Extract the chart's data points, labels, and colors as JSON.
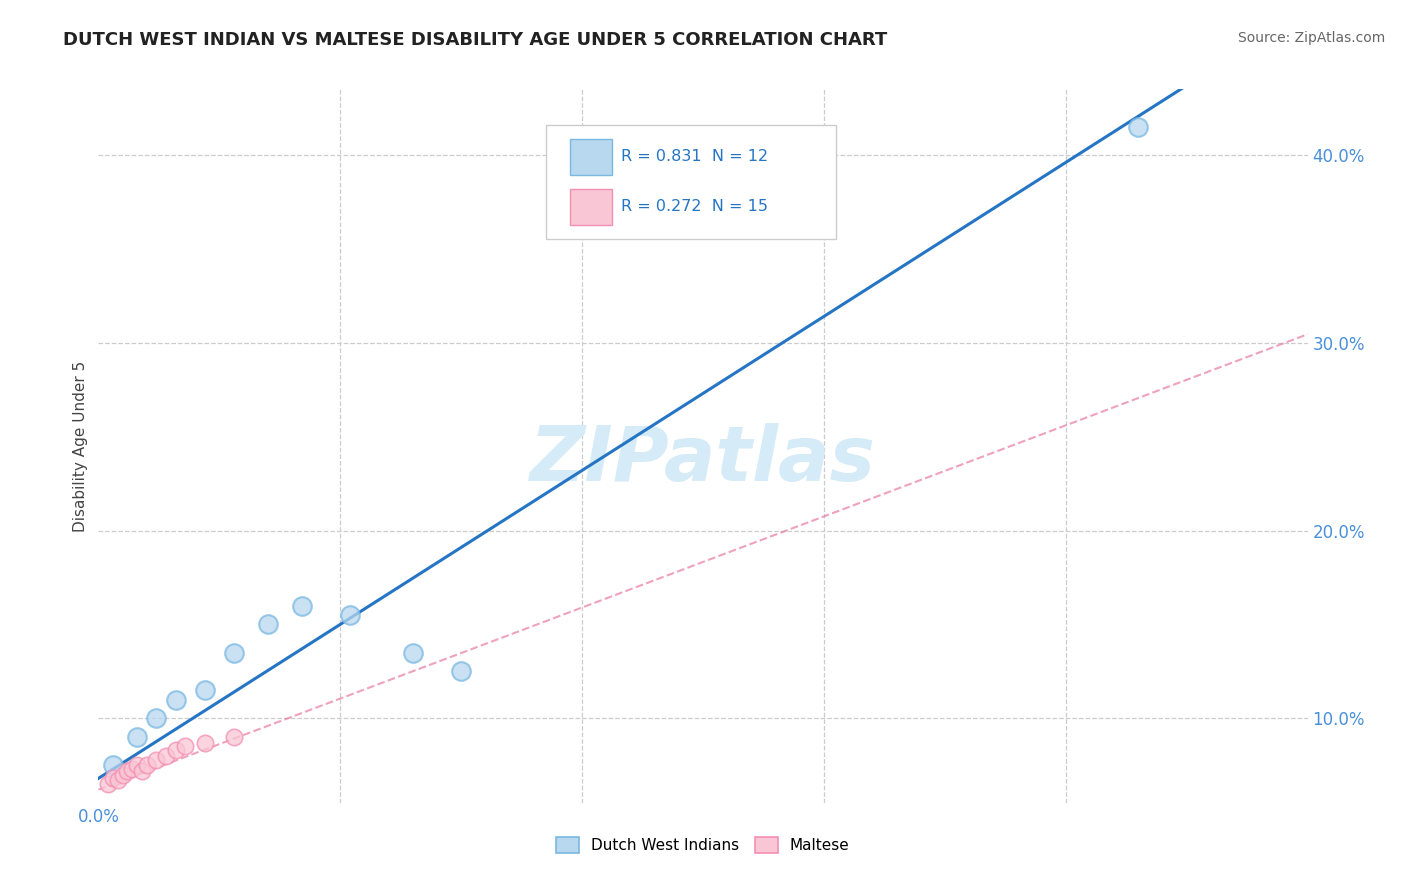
{
  "title": "DUTCH WEST INDIAN VS MALTESE DISABILITY AGE UNDER 5 CORRELATION CHART",
  "source": "Source: ZipAtlas.com",
  "ylabel": "Disability Age Under 5",
  "xlim": [
    0.0,
    0.25
  ],
  "ylim": [
    0.055,
    0.435
  ],
  "xticks": [
    0.0,
    0.05,
    0.1,
    0.15,
    0.2,
    0.25
  ],
  "xticklabels_show": {
    "0.0": "0.0%"
  },
  "yticks": [
    0.1,
    0.2,
    0.3,
    0.4
  ],
  "yticklabels": [
    "10.0%",
    "20.0%",
    "30.0%",
    "40.0%"
  ],
  "grid_yticks": [
    0.1,
    0.2,
    0.3,
    0.4
  ],
  "grid_xticks": [
    0.05,
    0.1,
    0.15,
    0.2
  ],
  "blue_color": "#7ab8e0",
  "blue_fill": "#b8d8f0",
  "pink_color": "#f48fb1",
  "pink_fill": "#f9c6d5",
  "line_blue": "#2575c4",
  "line_pink_dash": "#e87ba0",
  "watermark": "ZIPatlas",
  "legend_R1": "R = 0.831",
  "legend_N1": "N = 12",
  "legend_R2": "R = 0.272",
  "legend_N2": "N = 15",
  "legend_label1": "Dutch West Indians",
  "legend_label2": "Maltese",
  "blue_x": [
    0.003,
    0.008,
    0.012,
    0.016,
    0.022,
    0.028,
    0.035,
    0.042,
    0.052,
    0.065,
    0.075,
    0.215
  ],
  "blue_y": [
    0.075,
    0.09,
    0.1,
    0.11,
    0.115,
    0.135,
    0.15,
    0.16,
    0.155,
    0.135,
    0.125,
    0.415
  ],
  "pink_x": [
    0.002,
    0.003,
    0.004,
    0.005,
    0.006,
    0.007,
    0.008,
    0.009,
    0.01,
    0.012,
    0.014,
    0.016,
    0.018,
    0.022,
    0.028
  ],
  "pink_y": [
    0.065,
    0.068,
    0.067,
    0.07,
    0.072,
    0.073,
    0.075,
    0.072,
    0.075,
    0.078,
    0.08,
    0.083,
    0.085,
    0.087,
    0.09
  ],
  "background_color": "#ffffff",
  "grid_color": "#cccccc",
  "title_fontsize": 13,
  "axis_label_fontsize": 11,
  "tick_fontsize": 12,
  "source_fontsize": 10,
  "watermark_fontsize": 55,
  "watermark_color": "#d5ebf7",
  "marker_size_blue": 180,
  "marker_size_pink": 140,
  "blue_line_intercept": 0.068,
  "blue_line_slope": 1.64,
  "pink_line_intercept": 0.062,
  "pink_line_slope": 0.97
}
